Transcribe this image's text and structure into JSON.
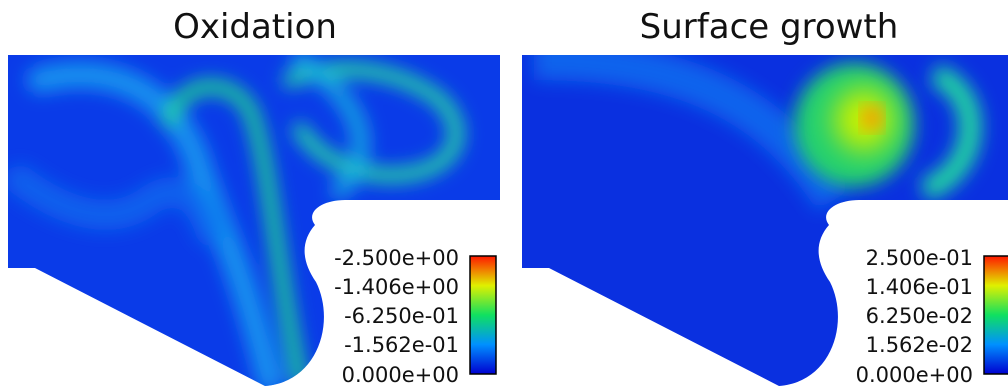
{
  "panels": [
    {
      "title": "Oxidation",
      "colorbar_labels": [
        "-2.500e+00",
        "-1.406e+00",
        "-6.250e-01",
        "-1.562e-01",
        "0.000e+00"
      ]
    },
    {
      "title": "Surface growth",
      "colorbar_labels": [
        "2.500e-01",
        "1.406e-01",
        "6.250e-02",
        "1.562e-02",
        "0.000e+00"
      ]
    }
  ]
}
